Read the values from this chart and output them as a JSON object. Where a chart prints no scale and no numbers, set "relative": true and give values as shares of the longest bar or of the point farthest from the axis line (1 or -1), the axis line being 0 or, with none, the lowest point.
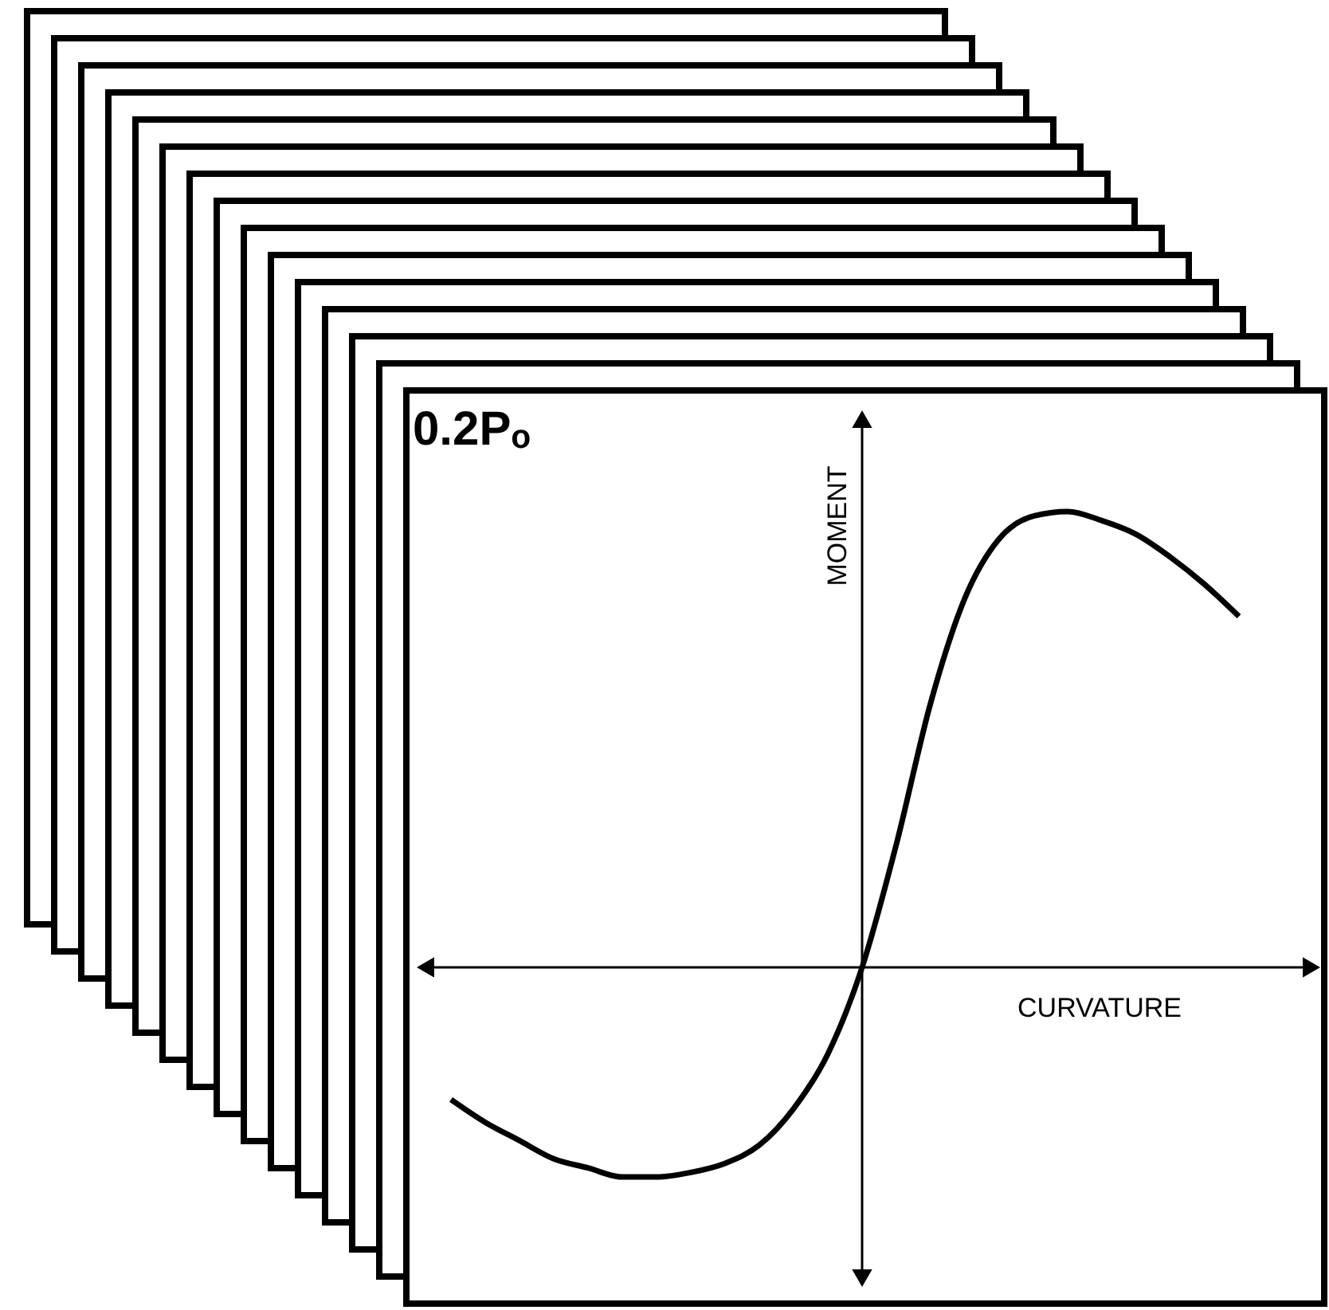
{
  "chart_data": {
    "type": "line",
    "title": "0.2Pₒ",
    "xlabel": "CURVATURE",
    "ylabel": "MOMENT",
    "relative": true,
    "color": "#000000",
    "categories": [
      null,
      null,
      null,
      null,
      null,
      null,
      null,
      null,
      null,
      null,
      null,
      null,
      null,
      null,
      null,
      null,
      null,
      null,
      null,
      null,
      null,
      null,
      null,
      null
    ],
    "values": [
      -0.29,
      -0.34,
      -0.38,
      -0.42,
      -0.44,
      -0.46,
      -0.46,
      -0.45,
      -0.43,
      -0.39,
      -0.31,
      -0.19,
      0,
      0.27,
      0.58,
      0.81,
      0.94,
      0.99,
      1,
      0.98,
      0.95,
      0.9,
      0.84,
      0.77
    ]
  }
}
